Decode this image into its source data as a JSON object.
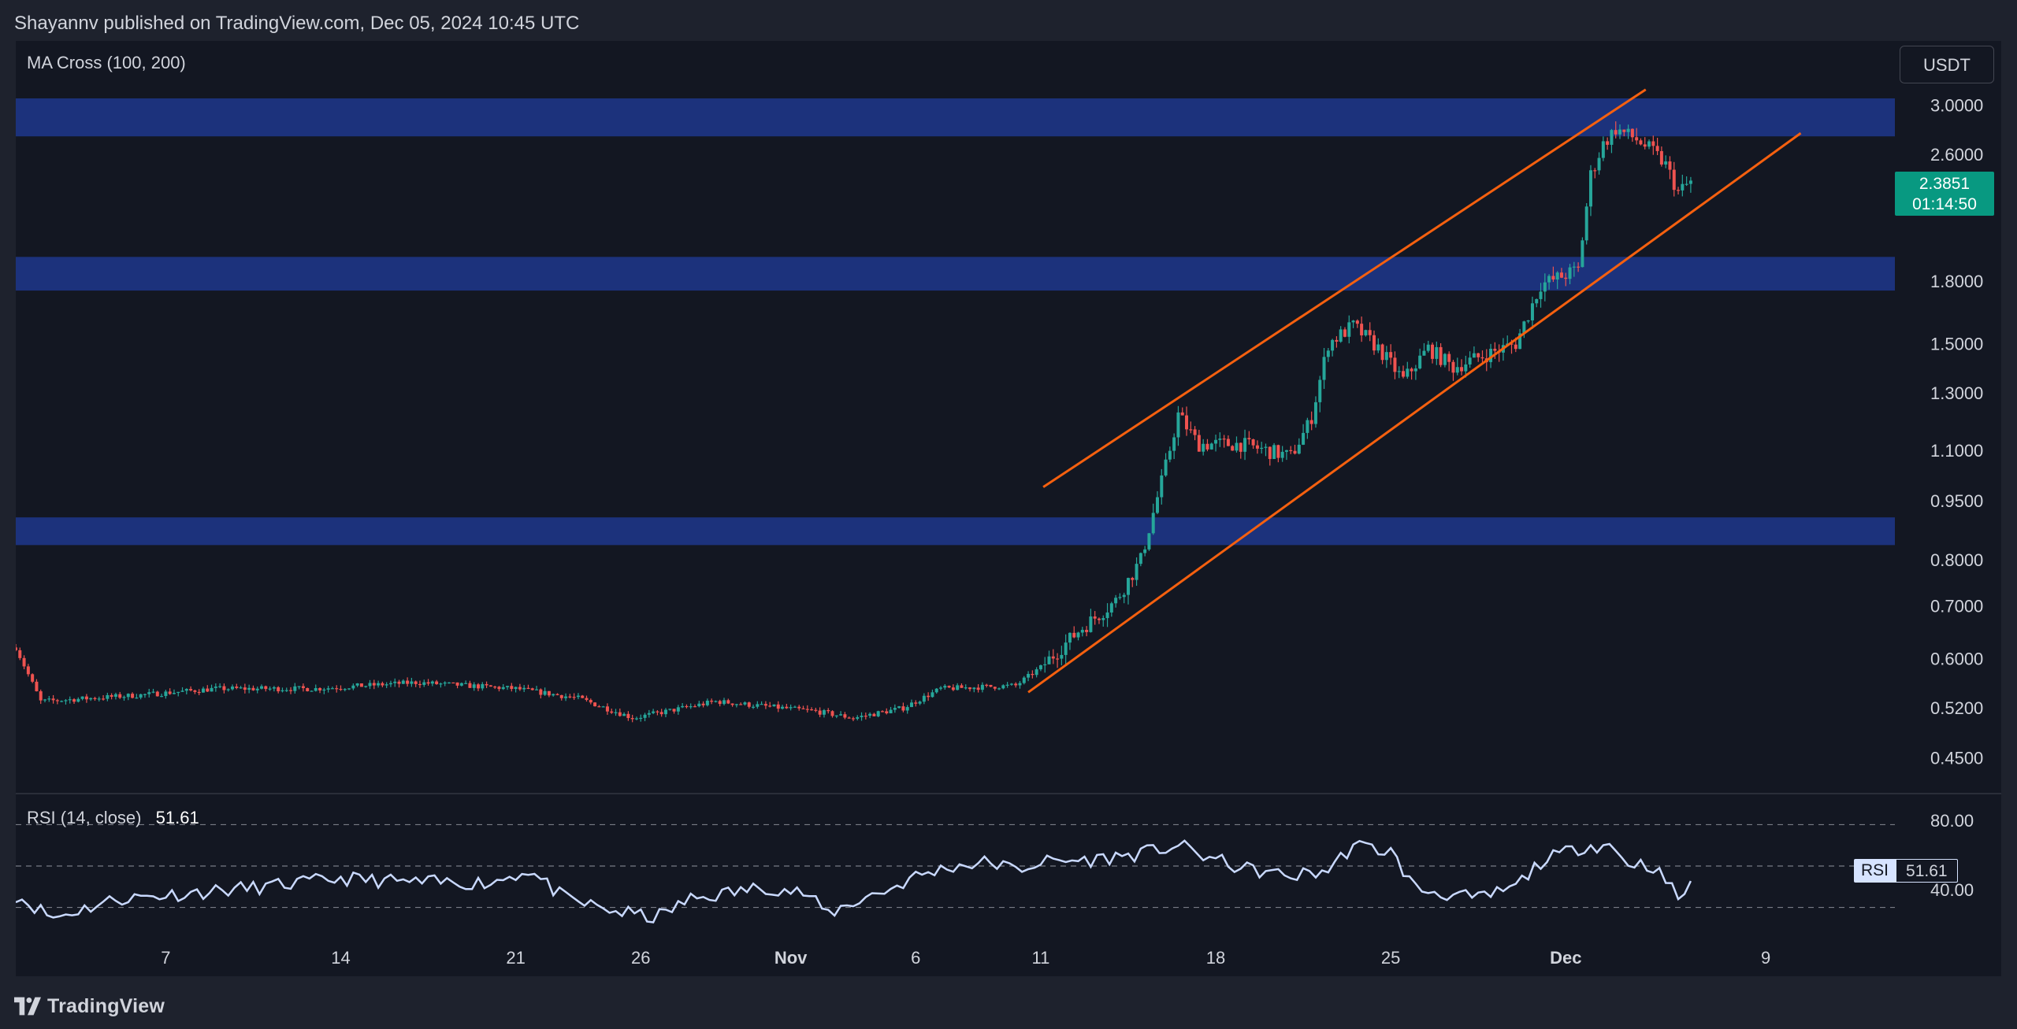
{
  "header": {
    "attribution": "Shayannv published on TradingView.com, Dec 05, 2024 10:45 UTC"
  },
  "footer": {
    "brand": "TradingView"
  },
  "main_pane": {
    "indicator_label": "MA Cross (100, 200)",
    "currency_button": "USDT",
    "price_badge": {
      "price": "2.3851",
      "countdown": "01:14:50",
      "color": "#089981"
    }
  },
  "rsi_pane": {
    "indicator_name": "RSI (14, close)",
    "indicator_value": "51.61",
    "badge_label": "RSI",
    "badge_value": "51.61",
    "line_color": "#c9d9ff",
    "levels": [
      80,
      60,
      40
    ],
    "level_labels": [
      "80.00",
      "40.00"
    ],
    "ylim": [
      25,
      95
    ]
  },
  "colors": {
    "up": "#26a69a",
    "down": "#ef5350",
    "zone": "#1e3586",
    "channel": "#f5600f",
    "background": "#131722"
  },
  "chart_data": {
    "type": "candlestick",
    "scale": "log",
    "x_axis": {
      "range_days": [
        0,
        44
      ],
      "ticks": [
        {
          "day": 6,
          "label": "7"
        },
        {
          "day": 13,
          "label": "14"
        },
        {
          "day": 20,
          "label": "21"
        },
        {
          "day": 25,
          "label": "26"
        },
        {
          "day": 31,
          "label": "Nov",
          "bold": true
        },
        {
          "day": 36,
          "label": "6"
        },
        {
          "day": 41,
          "label": "11"
        },
        {
          "day": 48,
          "label": "18"
        },
        {
          "day": 55,
          "label": "25"
        },
        {
          "day": 62,
          "label": "Dec",
          "bold": true
        },
        {
          "day": 70,
          "label": "9"
        }
      ]
    },
    "y_axis": {
      "ticks": [
        "3.0000",
        "2.6000",
        "1.8000",
        "1.5000",
        "1.3000",
        "1.1000",
        "0.9500",
        "0.8000",
        "0.7000",
        "0.6000",
        "0.5200",
        "0.4500"
      ]
    },
    "zones": [
      {
        "low": 2.74,
        "high": 3.06
      },
      {
        "low": 1.75,
        "high": 1.93
      },
      {
        "low": 0.835,
        "high": 0.905
      }
    ],
    "channel_lines": [
      {
        "from": {
          "day": 41.1,
          "price": 0.9885
        },
        "to": {
          "day": 65.2,
          "price": 3.1398
        }
      },
      {
        "from": {
          "day": 40.5,
          "price": 0.5443
        },
        "to": {
          "day": 71.4,
          "price": 2.7658
        }
      }
    ],
    "price_path": [
      [
        0,
        0.62
      ],
      [
        1,
        0.53
      ],
      [
        5,
        0.54
      ],
      [
        8,
        0.55
      ],
      [
        12,
        0.55
      ],
      [
        16,
        0.56
      ],
      [
        20,
        0.55
      ],
      [
        22.5,
        0.535
      ],
      [
        24.7,
        0.505
      ],
      [
        28,
        0.53
      ],
      [
        32,
        0.515
      ],
      [
        33.5,
        0.505
      ],
      [
        35.5,
        0.52
      ],
      [
        37,
        0.55
      ],
      [
        40,
        0.555
      ],
      [
        41,
        0.585
      ],
      [
        42.5,
        0.65
      ],
      [
        44,
        0.71
      ],
      [
        45,
        0.8
      ],
      [
        46,
        1.05
      ],
      [
        46.5,
        1.22
      ],
      [
        47.3,
        1.12
      ],
      [
        49,
        1.12
      ],
      [
        51,
        1.08
      ],
      [
        51.8,
        1.2
      ],
      [
        52.5,
        1.5
      ],
      [
        53.5,
        1.58
      ],
      [
        54.5,
        1.48
      ],
      [
        55.5,
        1.35
      ],
      [
        56.5,
        1.48
      ],
      [
        57.5,
        1.4
      ],
      [
        58.5,
        1.44
      ],
      [
        60,
        1.5
      ],
      [
        61,
        1.78
      ],
      [
        62.5,
        1.86
      ],
      [
        63,
        2.45
      ],
      [
        63.5,
        2.68
      ],
      [
        64,
        2.8
      ],
      [
        64.8,
        2.72
      ],
      [
        65.5,
        2.62
      ],
      [
        66,
        2.52
      ],
      [
        66.5,
        2.33
      ],
      [
        67,
        2.4
      ]
    ],
    "rsi_path": [
      [
        0,
        46
      ],
      [
        1.5,
        35
      ],
      [
        4,
        44
      ],
      [
        7,
        47
      ],
      [
        10,
        50
      ],
      [
        13,
        54
      ],
      [
        16,
        52
      ],
      [
        19,
        52
      ],
      [
        20.5,
        58
      ],
      [
        22,
        44
      ],
      [
        24,
        38
      ],
      [
        25.6,
        35
      ],
      [
        27,
        44
      ],
      [
        30,
        50
      ],
      [
        31.5,
        47
      ],
      [
        32.5,
        37
      ],
      [
        34,
        45
      ],
      [
        35,
        49
      ],
      [
        36,
        55
      ],
      [
        37.5,
        60
      ],
      [
        39,
        62
      ],
      [
        40,
        58
      ],
      [
        41,
        62
      ],
      [
        43,
        63
      ],
      [
        45,
        66
      ],
      [
        46.5,
        70
      ],
      [
        47.5,
        65
      ],
      [
        49,
        59
      ],
      [
        51,
        55
      ],
      [
        52.5,
        58
      ],
      [
        53.5,
        70
      ],
      [
        55,
        67
      ],
      [
        56,
        49
      ],
      [
        57,
        47
      ],
      [
        58.5,
        44
      ],
      [
        60,
        50
      ],
      [
        61,
        62
      ],
      [
        62.8,
        70
      ],
      [
        63.8,
        70
      ],
      [
        64.4,
        62
      ],
      [
        65.5,
        60
      ],
      [
        66.5,
        45
      ],
      [
        67,
        50
      ]
    ]
  }
}
